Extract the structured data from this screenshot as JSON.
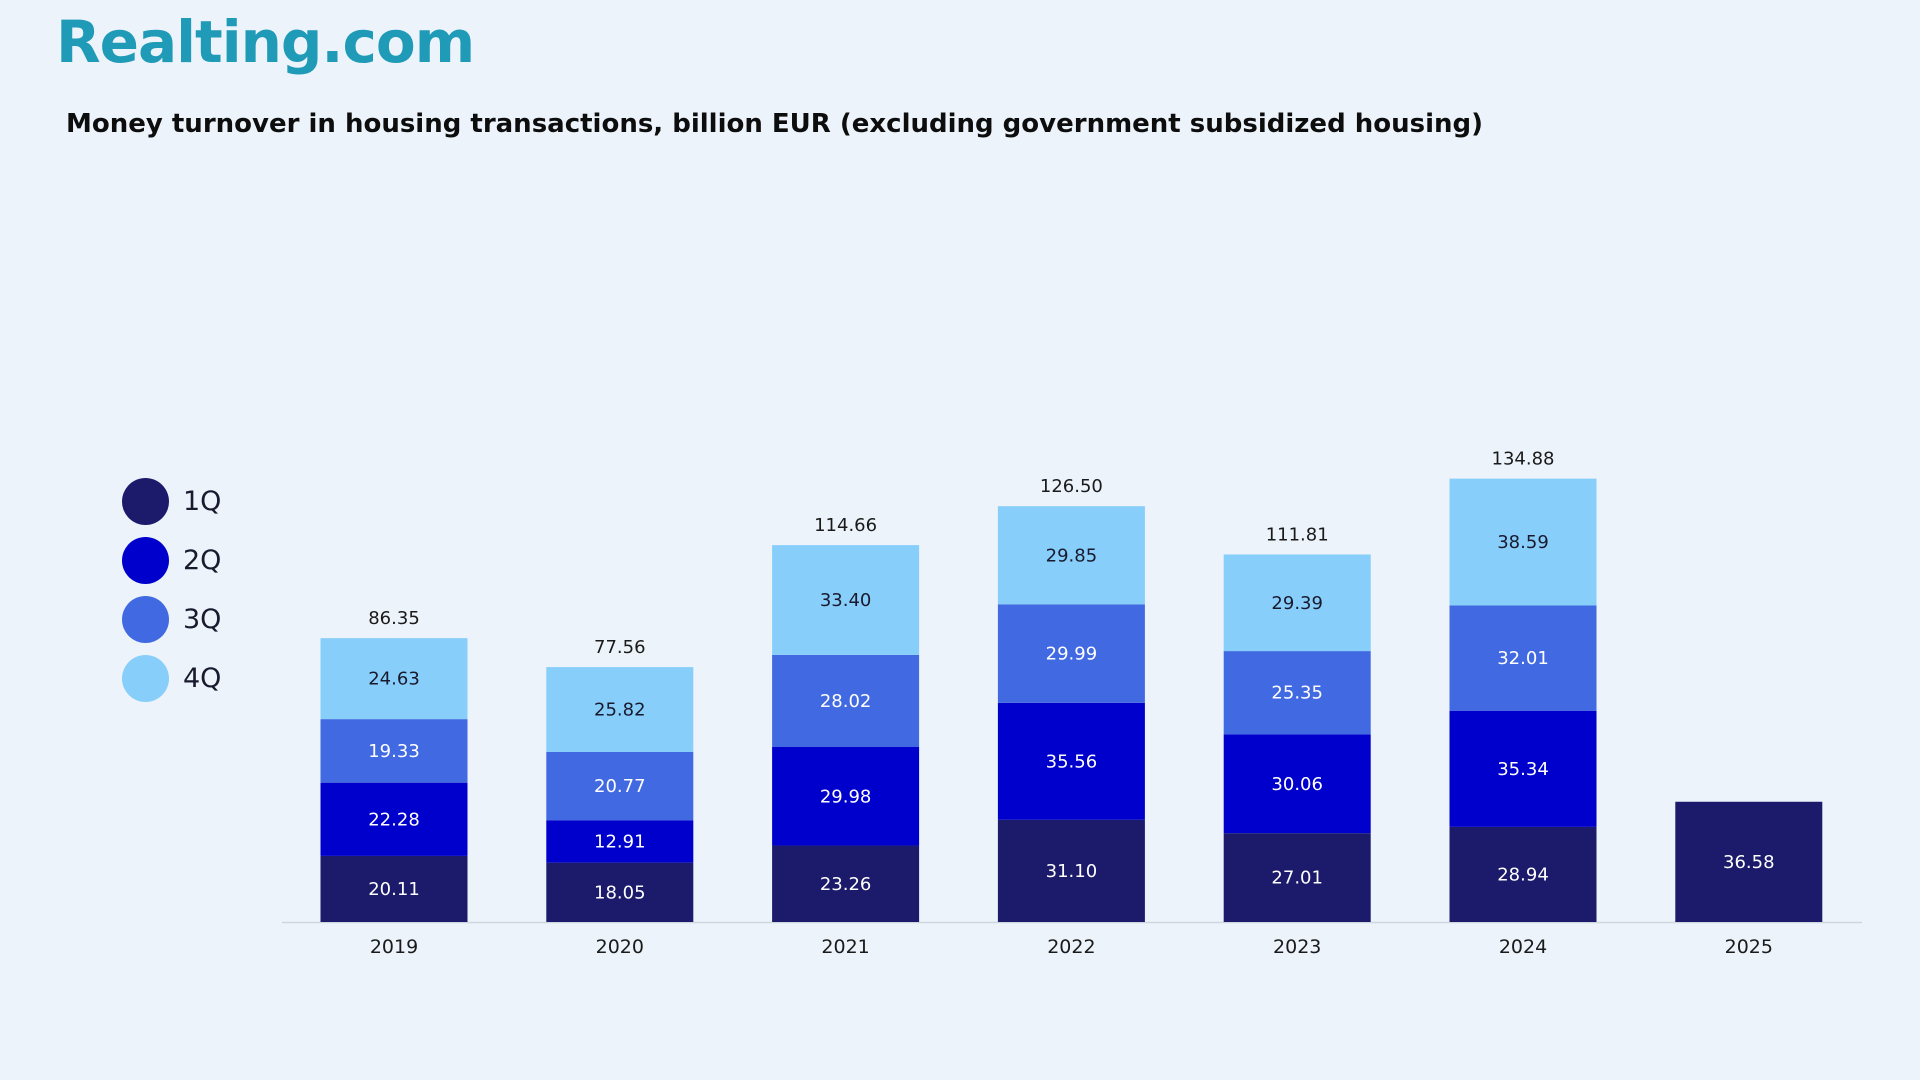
{
  "brand": {
    "logo_text": "Realting.com",
    "logo_color": "#1f9ab7"
  },
  "chart_data": {
    "type": "bar",
    "stacked": true,
    "title": "Money turnover in housing transactions, billion EUR (excluding government subsidized housing)",
    "xlabel": "",
    "ylabel": "",
    "ylim": [
      0,
      140
    ],
    "grid": false,
    "legend_position": "left",
    "categories": [
      "2019",
      "2020",
      "2021",
      "2022",
      "2023",
      "2024",
      "2025"
    ],
    "series": [
      {
        "name": "1Q",
        "color": "#1b1a6b",
        "label_color": "#ffffff",
        "values": [
          20.11,
          18.05,
          23.26,
          31.1,
          27.01,
          28.94,
          36.58
        ]
      },
      {
        "name": "2Q",
        "color": "#0000cc",
        "label_color": "#ffffff",
        "values": [
          22.28,
          12.91,
          29.98,
          35.56,
          30.06,
          35.34,
          null
        ]
      },
      {
        "name": "3Q",
        "color": "#4169e1",
        "label_color": "#ffffff",
        "values": [
          19.33,
          20.77,
          28.02,
          29.99,
          25.35,
          32.01,
          null
        ]
      },
      {
        "name": "4Q",
        "color": "#87cefa",
        "label_color": "#1a1a2e",
        "values": [
          24.63,
          25.82,
          33.4,
          29.85,
          29.39,
          38.59,
          null
        ]
      }
    ],
    "segment_labels": [
      [
        "20.11",
        "18.05",
        "23.26",
        "31.10",
        "27.01",
        "28.94",
        "36.58"
      ],
      [
        "22.28",
        "12.91",
        "29.98",
        "35.56",
        "30.06",
        "35.34",
        ""
      ],
      [
        "19.33",
        "20.77",
        "28.02",
        "29.99",
        "25.35",
        "32.01",
        ""
      ],
      [
        "24.63",
        "25.82",
        "33.40",
        "29.85",
        "29.39",
        "38.59",
        ""
      ]
    ],
    "totals": [
      "86.35",
      "77.56",
      "114.66",
      "126.50",
      "111.81",
      "134.88",
      ""
    ]
  }
}
